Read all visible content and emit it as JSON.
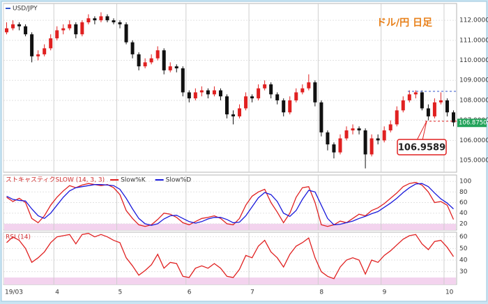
{
  "chart_data": [
    {
      "type": "candlestick",
      "title": "USD/JPY",
      "subtitle": "ドル/円 日足",
      "up_color": "#e02020",
      "down_color": "#111111",
      "categories": [
        "19/03",
        null,
        null,
        null,
        null,
        null,
        null,
        null,
        "4",
        null,
        null,
        null,
        null,
        null,
        null,
        null,
        null,
        null,
        "5",
        null,
        null,
        null,
        null,
        null,
        null,
        null,
        null,
        null,
        null,
        "6",
        null,
        null,
        null,
        null,
        null,
        null,
        null,
        null,
        null,
        "7",
        null,
        null,
        null,
        null,
        null,
        null,
        null,
        null,
        null,
        null,
        "8",
        null,
        null,
        null,
        null,
        null,
        null,
        null,
        null,
        null,
        "9",
        null,
        null,
        null,
        null,
        null,
        null,
        null,
        null,
        null,
        "10",
        null
      ],
      "ohlc": [
        [
          111.4,
          111.9,
          111.3,
          111.6
        ],
        [
          111.6,
          112.0,
          111.5,
          111.8
        ],
        [
          111.8,
          111.9,
          111.5,
          111.7
        ],
        [
          111.7,
          111.8,
          111.2,
          111.3
        ],
        [
          111.3,
          111.4,
          109.9,
          110.2
        ],
        [
          110.2,
          110.5,
          110.0,
          110.3
        ],
        [
          110.3,
          110.8,
          110.2,
          110.6
        ],
        [
          110.6,
          111.3,
          110.5,
          111.1
        ],
        [
          111.1,
          111.7,
          111.0,
          111.5
        ],
        [
          111.5,
          111.8,
          111.3,
          111.6
        ],
        [
          111.6,
          112.0,
          111.5,
          111.8
        ],
        [
          111.8,
          111.9,
          111.1,
          111.3
        ],
        [
          111.3,
          112.0,
          111.2,
          111.9
        ],
        [
          111.9,
          112.3,
          111.8,
          112.1
        ],
        [
          112.1,
          112.2,
          111.8,
          112.0
        ],
        [
          112.0,
          112.4,
          111.9,
          112.2
        ],
        [
          112.2,
          112.3,
          111.9,
          112.0
        ],
        [
          112.0,
          112.1,
          111.8,
          111.9
        ],
        [
          111.9,
          112.0,
          111.6,
          111.8
        ],
        [
          111.8,
          111.9,
          110.8,
          110.9
        ],
        [
          110.9,
          111.0,
          110.1,
          110.3
        ],
        [
          110.3,
          110.4,
          109.5,
          109.7
        ],
        [
          109.7,
          110.1,
          109.6,
          109.9
        ],
        [
          109.9,
          110.3,
          109.8,
          110.1
        ],
        [
          110.1,
          110.7,
          110.0,
          110.5
        ],
        [
          110.5,
          110.6,
          109.3,
          109.5
        ],
        [
          109.5,
          109.9,
          109.4,
          109.7
        ],
        [
          109.7,
          109.8,
          109.4,
          109.6
        ],
        [
          109.6,
          109.7,
          108.2,
          108.4
        ],
        [
          108.4,
          108.5,
          107.9,
          108.1
        ],
        [
          108.1,
          108.6,
          108.0,
          108.4
        ],
        [
          108.4,
          108.7,
          108.2,
          108.5
        ],
        [
          108.5,
          108.6,
          108.1,
          108.3
        ],
        [
          108.3,
          108.7,
          108.2,
          108.5
        ],
        [
          108.5,
          108.6,
          108.0,
          108.2
        ],
        [
          108.2,
          108.3,
          107.1,
          107.3
        ],
        [
          107.3,
          107.5,
          106.8,
          107.2
        ],
        [
          107.2,
          107.8,
          107.1,
          107.6
        ],
        [
          107.6,
          108.4,
          107.5,
          108.2
        ],
        [
          108.2,
          108.3,
          107.9,
          108.1
        ],
        [
          108.1,
          108.8,
          108.0,
          108.6
        ],
        [
          108.6,
          109.0,
          108.5,
          108.8
        ],
        [
          108.8,
          108.9,
          108.1,
          108.3
        ],
        [
          108.3,
          108.4,
          107.8,
          108.0
        ],
        [
          108.0,
          108.1,
          107.2,
          107.4
        ],
        [
          107.4,
          108.2,
          107.3,
          108.0
        ],
        [
          108.0,
          108.6,
          107.9,
          108.4
        ],
        [
          108.4,
          108.8,
          108.3,
          108.6
        ],
        [
          108.6,
          109.3,
          108.5,
          108.9
        ],
        [
          108.9,
          109.0,
          107.7,
          107.9
        ],
        [
          107.9,
          108.0,
          106.2,
          106.4
        ],
        [
          106.4,
          106.5,
          105.5,
          105.8
        ],
        [
          105.8,
          105.9,
          105.1,
          105.4
        ],
        [
          105.4,
          106.3,
          105.3,
          106.1
        ],
        [
          106.1,
          106.7,
          106.0,
          106.5
        ],
        [
          106.5,
          106.8,
          106.3,
          106.6
        ],
        [
          106.6,
          106.7,
          106.3,
          106.5
        ],
        [
          106.5,
          106.6,
          104.6,
          105.3
        ],
        [
          105.3,
          106.3,
          105.2,
          106.1
        ],
        [
          106.1,
          106.3,
          105.8,
          106.0
        ],
        [
          106.0,
          106.7,
          105.9,
          106.5
        ],
        [
          106.5,
          107.0,
          106.4,
          106.8
        ],
        [
          106.8,
          107.7,
          106.7,
          107.5
        ],
        [
          107.5,
          108.2,
          107.4,
          108.0
        ],
        [
          108.0,
          108.5,
          107.9,
          108.3
        ],
        [
          108.3,
          108.5,
          108.1,
          108.4
        ],
        [
          108.4,
          108.5,
          107.5,
          107.6
        ],
        [
          107.6,
          107.8,
          107.0,
          107.2
        ],
        [
          107.2,
          108.1,
          107.1,
          107.9
        ],
        [
          107.9,
          108.4,
          107.8,
          108.0
        ],
        [
          108.0,
          108.1,
          107.2,
          107.4
        ],
        [
          107.4,
          107.5,
          106.7,
          106.9
        ]
      ],
      "ylim": [
        104.41,
        112.84
      ],
      "yticks": [
        {
          "value": 105,
          "label": "105.0000"
        },
        {
          "value": 106,
          "label": "106.0000"
        },
        {
          "value": 107,
          "label": "107.0000"
        },
        {
          "value": 108,
          "label": "108.0000"
        },
        {
          "value": 109,
          "label": "109.0000"
        },
        {
          "value": 110,
          "label": "110.0000"
        },
        {
          "value": 111,
          "label": "111.0000"
        },
        {
          "value": 112,
          "label": "112.0000"
        }
      ],
      "grid": true,
      "last_price": {
        "value": 106.875,
        "label": "106.8750"
      },
      "high_line": 108.45,
      "high_line_color": "#3355cc",
      "callout": {
        "value": 106.9589,
        "label": "106.9589"
      },
      "callout_color": "#e02020"
    },
    {
      "type": "line",
      "title": "ストキャスティクSLOW (14, 3, 3)",
      "title_color": "#d03030",
      "series": [
        {
          "name": "Slow%K",
          "color": "#e02020",
          "values": [
            70,
            62,
            68,
            60,
            30,
            22,
            35,
            55,
            70,
            82,
            92,
            88,
            93,
            96,
            94,
            92,
            94,
            88,
            75,
            45,
            30,
            18,
            15,
            18,
            28,
            40,
            38,
            32,
            22,
            18,
            24,
            30,
            32,
            35,
            30,
            20,
            18,
            30,
            55,
            72,
            80,
            85,
            60,
            42,
            22,
            40,
            70,
            88,
            90,
            60,
            18,
            15,
            18,
            25,
            22,
            30,
            38,
            35,
            45,
            50,
            58,
            68,
            78,
            90,
            96,
            98,
            93,
            80,
            60,
            62,
            55,
            28
          ]
        },
        {
          "name": "Slow%D",
          "color": "#1a1adb",
          "values": [
            72,
            66,
            64,
            63,
            48,
            35,
            30,
            40,
            55,
            70,
            82,
            88,
            90,
            92,
            94,
            94,
            93,
            92,
            85,
            68,
            48,
            30,
            20,
            17,
            20,
            29,
            35,
            36,
            30,
            24,
            21,
            24,
            29,
            32,
            32,
            28,
            22,
            23,
            35,
            52,
            69,
            79,
            75,
            62,
            40,
            34,
            45,
            66,
            83,
            80,
            55,
            30,
            18,
            19,
            22,
            25,
            30,
            34,
            39,
            43,
            51,
            59,
            68,
            79,
            88,
            95,
            96,
            90,
            78,
            67,
            59,
            48
          ]
        }
      ],
      "ylim": [
        8,
        112
      ],
      "yticks": [
        20,
        40,
        60,
        80,
        100
      ],
      "grid": true,
      "band": [
        0,
        20
      ],
      "band_color": "#f3d3ee"
    },
    {
      "type": "line",
      "title": "RSI (14)",
      "title_color": "#d03030",
      "series": [
        {
          "color": "#e02020",
          "values": [
            55,
            60,
            57,
            50,
            38,
            42,
            47,
            55,
            60,
            61,
            62,
            54,
            62,
            63,
            60,
            62,
            60,
            57,
            55,
            42,
            35,
            27,
            31,
            36,
            45,
            33,
            38,
            37,
            26,
            25,
            33,
            35,
            33,
            37,
            33,
            26,
            25,
            32,
            44,
            42,
            52,
            57,
            47,
            42,
            34,
            45,
            52,
            55,
            59,
            42,
            30,
            26,
            24,
            34,
            40,
            42,
            40,
            28,
            40,
            38,
            44,
            48,
            53,
            58,
            61,
            62,
            54,
            49,
            56,
            57,
            51,
            43
          ]
        }
      ],
      "ylim": [
        19,
        64
      ],
      "yticks": [
        30,
        40,
        50,
        60
      ],
      "grid": true,
      "band": [
        0,
        25
      ],
      "band_color": "#f3d3ee"
    }
  ]
}
